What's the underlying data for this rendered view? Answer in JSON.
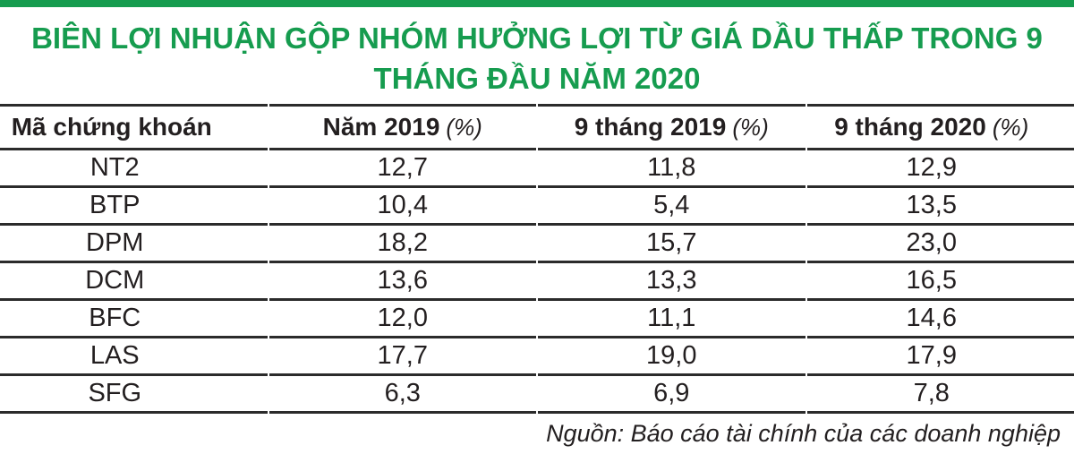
{
  "accent_color": "#169c4f",
  "line_color": "#2b2b2b",
  "title": {
    "line1": "BIÊN LỢI NHUẬN GỘP NHÓM HƯỞNG LỢI TỪ GIÁ DẦU THẤP TRONG 9",
    "line2": "THÁNG ĐẦU NĂM 2020"
  },
  "table": {
    "columns": [
      {
        "label": "Mã chứng khoán",
        "unit": ""
      },
      {
        "label": "Năm 2019",
        "unit": "(%)"
      },
      {
        "label": "9 tháng 2019",
        "unit": "(%)"
      },
      {
        "label": "9 tháng 2020",
        "unit": "(%)"
      }
    ],
    "rows": [
      {
        "ticker": "NT2",
        "y2019": "12,7",
        "m9y2019": "11,8",
        "m9y2020": "12,9"
      },
      {
        "ticker": "BTP",
        "y2019": "10,4",
        "m9y2019": "5,4",
        "m9y2020": "13,5"
      },
      {
        "ticker": "DPM",
        "y2019": "18,2",
        "m9y2019": "15,7",
        "m9y2020": "23,0"
      },
      {
        "ticker": "DCM",
        "y2019": "13,6",
        "m9y2019": "13,3",
        "m9y2020": "16,5"
      },
      {
        "ticker": "BFC",
        "y2019": "12,0",
        "m9y2019": "11,1",
        "m9y2020": "14,6"
      },
      {
        "ticker": "LAS",
        "y2019": "17,7",
        "m9y2019": "19,0",
        "m9y2020": "17,9"
      },
      {
        "ticker": "SFG",
        "y2019": "6,3",
        "m9y2019": "6,9",
        "m9y2020": "7,8"
      }
    ]
  },
  "source": "Nguồn: Báo cáo tài chính của các doanh nghiệp",
  "chart_data": {
    "type": "table",
    "title": "BIÊN LỢI NHUẬN GỘP NHÓM HƯỞNG LỢI TỪ GIÁ DẦU THẤP TRONG 9 THÁNG ĐẦU NĂM 2020",
    "categories": [
      "NT2",
      "BTP",
      "DPM",
      "DCM",
      "BFC",
      "LAS",
      "SFG"
    ],
    "series": [
      {
        "name": "Năm 2019 (%)",
        "values": [
          12.7,
          10.4,
          18.2,
          13.6,
          12.0,
          17.7,
          6.3
        ]
      },
      {
        "name": "9 tháng 2019 (%)",
        "values": [
          11.8,
          5.4,
          15.7,
          13.3,
          11.1,
          19.0,
          6.9
        ]
      },
      {
        "name": "9 tháng 2020 (%)",
        "values": [
          12.9,
          13.5,
          23.0,
          16.5,
          14.6,
          17.9,
          7.8
        ]
      }
    ],
    "source": "Nguồn: Báo cáo tài chính của các doanh nghiệp"
  }
}
